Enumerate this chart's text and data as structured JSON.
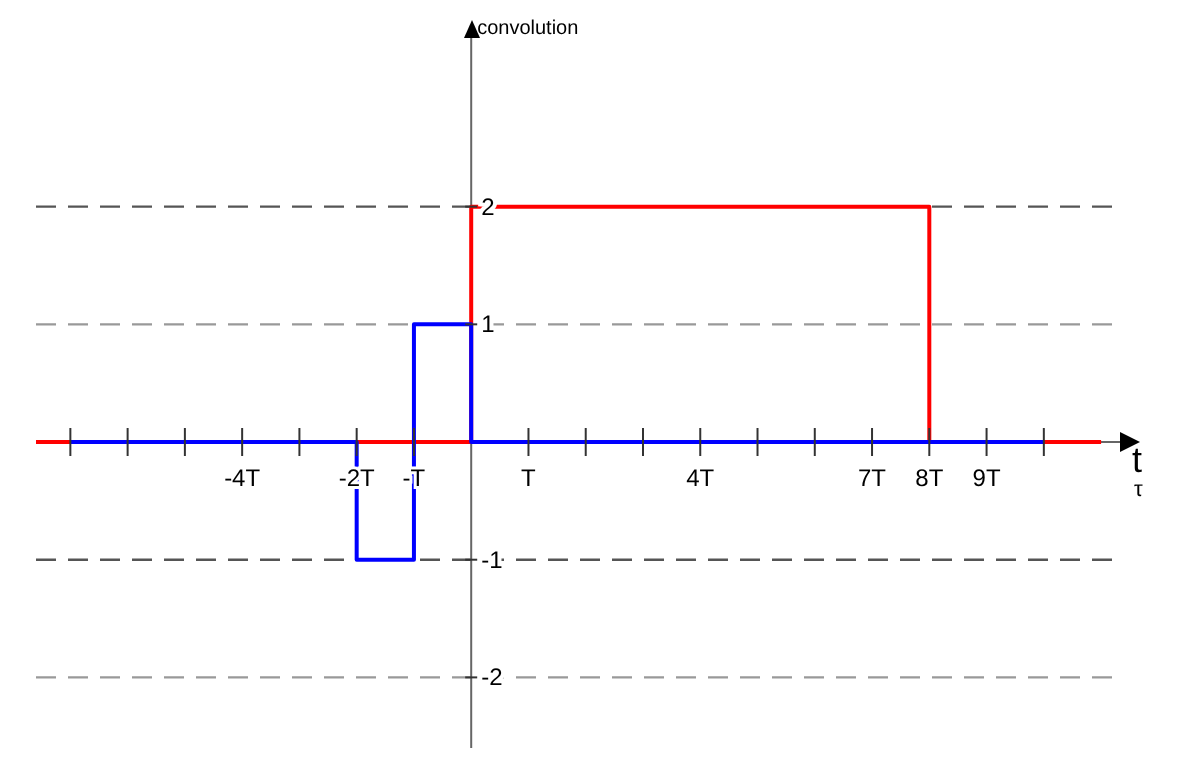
{
  "chart_data": {
    "type": "step",
    "ylabel": "convolution",
    "xlabel": "t",
    "annotations": [
      "τ"
    ],
    "xlim": [
      -7.6,
      11.4
    ],
    "ylim": [
      -2.6,
      3.45
    ],
    "xticks": [
      {
        "value": -7,
        "label": null
      },
      {
        "value": -6,
        "label": null
      },
      {
        "value": -5,
        "label": null
      },
      {
        "value": -4,
        "label": "-4T"
      },
      {
        "value": -3,
        "label": null
      },
      {
        "value": -2,
        "label": "-2T"
      },
      {
        "value": -1,
        "label": "-T"
      },
      {
        "value": 1,
        "label": "T"
      },
      {
        "value": 2,
        "label": null
      },
      {
        "value": 3,
        "label": null
      },
      {
        "value": 4,
        "label": "4T"
      },
      {
        "value": 5,
        "label": null
      },
      {
        "value": 6,
        "label": null
      },
      {
        "value": 7,
        "label": "7T"
      },
      {
        "value": 8,
        "label": "8T"
      },
      {
        "value": 9,
        "label": "9T"
      },
      {
        "value": 10,
        "label": null
      }
    ],
    "yticks": [
      -2,
      -1,
      1,
      2
    ],
    "ref_lines": [
      {
        "axis": "y",
        "value": 2,
        "color": "#555555",
        "line_style": "dashed"
      },
      {
        "axis": "y",
        "value": 1,
        "color": "#999999",
        "line_style": "dashed"
      },
      {
        "axis": "y",
        "value": -1,
        "color": "#555555",
        "line_style": "dashed"
      },
      {
        "axis": "y",
        "value": -2,
        "color": "#999999",
        "line_style": "dashed"
      }
    ],
    "series": [
      {
        "color": "#ff0000",
        "x": [
          -7.6,
          0,
          8,
          11
        ],
        "values": [
          0,
          2,
          0,
          0
        ]
      },
      {
        "color": "#0000ff",
        "x": [
          -7,
          -2,
          -1,
          0,
          10
        ],
        "values": [
          0,
          -1,
          1,
          0,
          0
        ]
      }
    ],
    "grid": false,
    "legend": false,
    "marker": "none"
  }
}
